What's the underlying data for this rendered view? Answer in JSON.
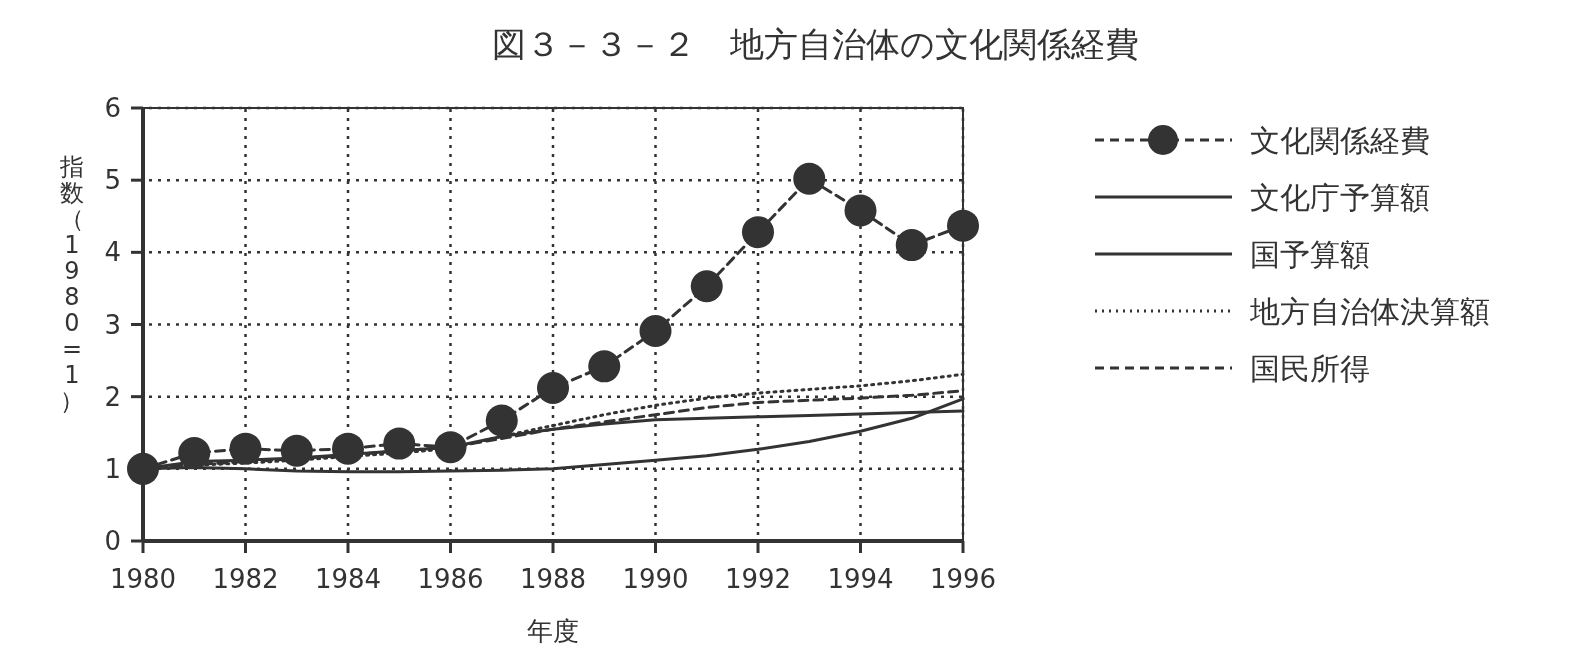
{
  "chart_data": {
    "type": "line",
    "title": "図３－３－２　地方自治体の文化関係経費",
    "xlabel": "年度",
    "ylabel": "指数（1980=1）",
    "x": [
      1980,
      1981,
      1982,
      1983,
      1984,
      1985,
      1986,
      1987,
      1988,
      1989,
      1990,
      1991,
      1992,
      1993,
      1994,
      1995,
      1996
    ],
    "xlim": [
      1980,
      1996
    ],
    "xticks": [
      1980,
      1982,
      1984,
      1986,
      1988,
      1990,
      1992,
      1994,
      1996
    ],
    "ylim": [
      0,
      6
    ],
    "yticks": [
      0,
      1,
      2,
      3,
      4,
      5,
      6
    ],
    "grid": true,
    "legend": "right",
    "series": [
      {
        "name": "文化関係経費",
        "color": "#333333",
        "marker": "circle",
        "line_style": "dashed",
        "values": [
          1.0,
          1.22,
          1.28,
          1.25,
          1.28,
          1.35,
          1.3,
          1.67,
          2.12,
          2.42,
          2.91,
          3.53,
          4.28,
          5.02,
          4.58,
          4.1,
          4.37
        ]
      },
      {
        "name": "文化庁予算額",
        "color": "#333333",
        "marker": "none",
        "line_style": "solid",
        "values": [
          1.0,
          1.1,
          1.12,
          1.15,
          1.2,
          1.25,
          1.3,
          1.45,
          1.55,
          1.62,
          1.68,
          1.7,
          1.72,
          1.74,
          1.76,
          1.78,
          1.8
        ]
      },
      {
        "name": "国予算額",
        "color": "#333333",
        "marker": "none",
        "line_style": "solid",
        "values": [
          1.0,
          1.02,
          1.0,
          0.97,
          0.96,
          0.96,
          0.97,
          0.98,
          1.0,
          1.06,
          1.12,
          1.18,
          1.27,
          1.38,
          1.52,
          1.7,
          1.97
        ]
      },
      {
        "name": "地方自治体決算額",
        "color": "#333333",
        "marker": "none",
        "line_style": "dotted",
        "values": [
          1.0,
          1.05,
          1.08,
          1.12,
          1.17,
          1.22,
          1.28,
          1.45,
          1.6,
          1.75,
          1.88,
          1.98,
          2.05,
          2.1,
          2.15,
          2.22,
          2.31
        ]
      },
      {
        "name": "国民所得",
        "color": "#333333",
        "marker": "none",
        "line_style": "dashed",
        "values": [
          1.0,
          1.06,
          1.1,
          1.14,
          1.19,
          1.25,
          1.3,
          1.42,
          1.55,
          1.65,
          1.75,
          1.85,
          1.92,
          1.95,
          1.98,
          2.02,
          2.08
        ]
      }
    ]
  }
}
